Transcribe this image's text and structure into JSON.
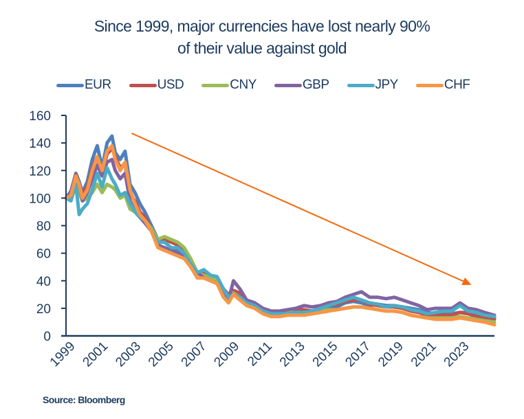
{
  "chart_data": {
    "type": "line",
    "title": "Since 1999, major currencies have lost nearly 90% of their value against gold",
    "title_lines": [
      "Since 1999, major currencies have lost nearly 90%",
      "of their value against gold"
    ],
    "xlabel": "",
    "ylabel": "",
    "ylim": [
      0,
      160
    ],
    "yticks": [
      0,
      20,
      40,
      60,
      80,
      100,
      120,
      140,
      160
    ],
    "xlim": [
      1999.0,
      2025.1
    ],
    "xticks": [
      1999,
      2001,
      2003,
      2005,
      2007,
      2009,
      2011,
      2013,
      2015,
      2017,
      2019,
      2021,
      2023
    ],
    "grid": false,
    "legend_position": "top",
    "annotation": {
      "type": "arrow",
      "description": "downward trend arrow",
      "from": [
        2003.0,
        147
      ],
      "to": [
        2023.7,
        37
      ],
      "color": "#f26a10"
    },
    "x": [
      1999.0,
      1999.3,
      1999.6,
      1999.8,
      2000.0,
      2000.3,
      2000.6,
      2000.9,
      2001.2,
      2001.5,
      2001.8,
      2002.0,
      2002.3,
      2002.6,
      2002.9,
      2003.2,
      2003.5,
      2003.8,
      2004.2,
      2004.6,
      2005.0,
      2005.4,
      2005.8,
      2006.2,
      2006.6,
      2007.0,
      2007.4,
      2007.8,
      2008.2,
      2008.6,
      2008.9,
      2009.2,
      2009.6,
      2010.0,
      2010.5,
      2011.0,
      2011.5,
      2012.0,
      2012.5,
      2013.0,
      2013.5,
      2014.0,
      2014.5,
      2015.0,
      2015.5,
      2016.0,
      2016.5,
      2017.0,
      2017.5,
      2018.0,
      2018.5,
      2019.0,
      2019.5,
      2020.0,
      2020.5,
      2021.0,
      2021.5,
      2022.0,
      2022.5,
      2023.0,
      2023.5,
      2024.0,
      2024.5,
      2025.1
    ],
    "series": [
      {
        "name": "EUR",
        "color": "#4f7fbd",
        "values": [
          100,
          105,
          118,
          112,
          104,
          112,
          128,
          138,
          122,
          140,
          145,
          133,
          128,
          134,
          110,
          104,
          96,
          90,
          80,
          70,
          68,
          64,
          62,
          58,
          50,
          46,
          44,
          42,
          40,
          30,
          28,
          30,
          29,
          24,
          22,
          18,
          16,
          16,
          16,
          17,
          17,
          17,
          19,
          20,
          21,
          24,
          25,
          24,
          22,
          23,
          22,
          22,
          21,
          20,
          19,
          17,
          16,
          16,
          16,
          17,
          17,
          15,
          14,
          13
        ]
      },
      {
        "name": "USD",
        "color": "#c0504d",
        "values": [
          100,
          104,
          117,
          110,
          103,
          108,
          122,
          130,
          118,
          132,
          136,
          130,
          122,
          125,
          103,
          98,
          90,
          86,
          78,
          70,
          70,
          68,
          66,
          62,
          54,
          46,
          46,
          44,
          42,
          34,
          30,
          33,
          31,
          25,
          23,
          18,
          17,
          17,
          18,
          19,
          19,
          18,
          20,
          22,
          23,
          25,
          26,
          26,
          23,
          22,
          21,
          21,
          20,
          18,
          17,
          15,
          15,
          15,
          15,
          17,
          16,
          14,
          13,
          12
        ]
      },
      {
        "name": "CNY",
        "color": "#9bbb59",
        "values": [
          100,
          100,
          108,
          104,
          98,
          100,
          104,
          110,
          104,
          110,
          108,
          106,
          100,
          102,
          92,
          90,
          86,
          84,
          78,
          70,
          72,
          70,
          68,
          64,
          56,
          46,
          44,
          42,
          41,
          32,
          28,
          31,
          28,
          24,
          22,
          18,
          16,
          16,
          17,
          17,
          17,
          17,
          18,
          19,
          19,
          20,
          21,
          21,
          20,
          19,
          18,
          18,
          17,
          15,
          14,
          13,
          13,
          13,
          13,
          14,
          13,
          12,
          11,
          10
        ]
      },
      {
        "name": "GBP",
        "color": "#8064a2",
        "values": [
          100,
          104,
          116,
          110,
          98,
          104,
          114,
          124,
          116,
          126,
          128,
          120,
          114,
          118,
          98,
          90,
          86,
          82,
          76,
          66,
          64,
          62,
          60,
          58,
          50,
          46,
          42,
          40,
          38,
          30,
          26,
          40,
          34,
          26,
          24,
          20,
          18,
          18,
          19,
          20,
          22,
          21,
          22,
          24,
          25,
          28,
          30,
          32,
          28,
          28,
          27,
          28,
          26,
          24,
          22,
          19,
          20,
          20,
          20,
          24,
          20,
          19,
          17,
          15
        ]
      },
      {
        "name": "JPY",
        "color": "#4bacc6",
        "values": [
          100,
          98,
          110,
          88,
          92,
          96,
          106,
          118,
          108,
          122,
          114,
          110,
          102,
          104,
          96,
          90,
          86,
          84,
          76,
          68,
          68,
          64,
          64,
          60,
          52,
          46,
          48,
          44,
          43,
          34,
          28,
          30,
          28,
          24,
          22,
          18,
          16,
          16,
          16,
          17,
          17,
          18,
          20,
          22,
          24,
          26,
          28,
          26,
          24,
          23,
          21,
          22,
          21,
          19,
          18,
          16,
          17,
          18,
          18,
          22,
          18,
          17,
          15,
          14
        ]
      },
      {
        "name": "CHF",
        "color": "#f79646",
        "values": [
          100,
          102,
          116,
          110,
          100,
          106,
          120,
          130,
          120,
          134,
          138,
          128,
          120,
          126,
          106,
          96,
          88,
          84,
          76,
          64,
          62,
          60,
          58,
          56,
          50,
          42,
          42,
          40,
          38,
          28,
          24,
          30,
          26,
          22,
          20,
          16,
          14,
          14,
          15,
          15,
          15,
          16,
          17,
          18,
          19,
          20,
          21,
          21,
          20,
          19,
          18,
          18,
          17,
          15,
          14,
          13,
          12,
          12,
          12,
          13,
          12,
          11,
          10,
          8
        ]
      }
    ]
  },
  "source": "Source: Bloomberg"
}
